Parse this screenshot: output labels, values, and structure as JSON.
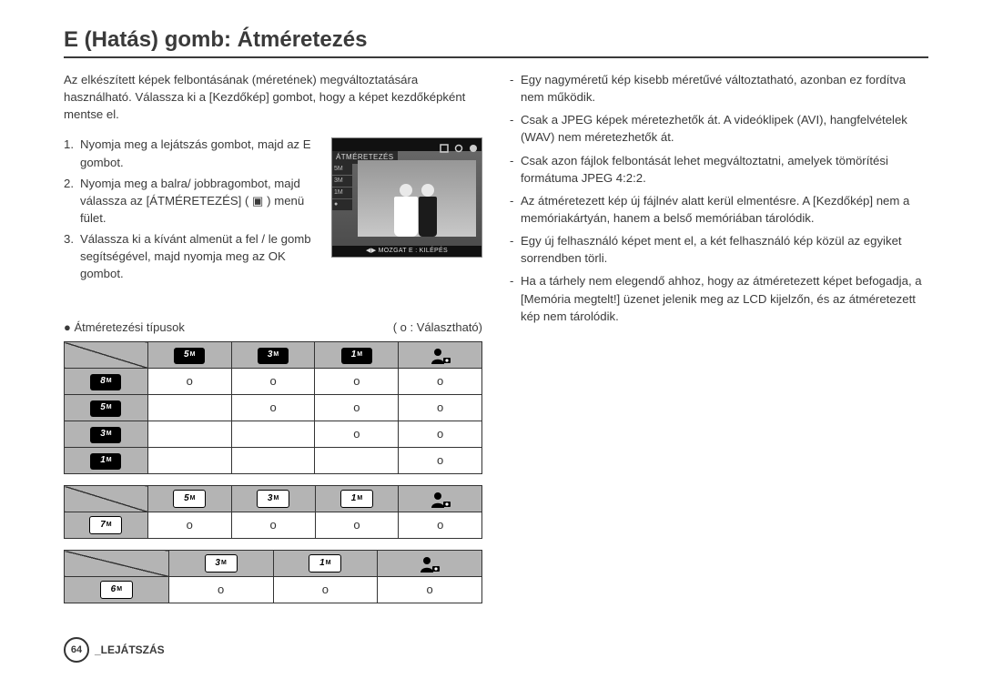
{
  "title": "E (Hatás) gomb: Átméretezés",
  "intro": "Az elkészített képek felbontásának (méretének) megváltoztatására használható. Válassza ki a [Kezdőkép] gombot, hogy a képet kezdőképként mentse el.",
  "steps": [
    "Nyomja meg a lejátszás gombot, majd az E gombot.",
    "Nyomja meg a balra/ jobbragombot, majd válassza az [ÁTMÉRETEZÉS] ( ▣ ) menü fület.",
    "Válassza ki a kívánt almenüt a  fel / le gomb segítségével, majd nyomja meg az OK gombot."
  ],
  "thumb": {
    "top_label": "ÁTMÉRETEZÉS",
    "side": [
      "5M",
      "3M",
      "1M",
      "●"
    ],
    "bottom": "◀▶ MOZGAT    E : KILÉPÉS"
  },
  "right_bullets": [
    {
      "text": "Egy nagyméretű kép kisebb méretűvé változtatható, azonban ez fordítva nem működik.",
      "sub": false
    },
    {
      "text": "Csak a JPEG képek méretezhetők át. A videóklipek (AVI), hangfelvételek (WAV) nem méretezhetők át.",
      "sub": false
    },
    {
      "text": "Csak azon fájlok felbontását lehet megváltoztatni, amelyek tömörítési formátuma JPEG 4:2:2.",
      "sub": false
    },
    {
      "text": "Az átméretezett kép új fájlnév alatt kerül elmentésre. A [Kezdőkép] nem a memóriakártyán, hanem a belső memóriában tárolódik.",
      "sub": false
    },
    {
      "text": "Egy új felhasználó képet ment el, a két felhasználó kép közül az egyiket sorrendben törli.",
      "sub": false
    },
    {
      "text": "Ha a tárhely nem elegendő ahhoz, hogy az átméretezett képet befogadja, a [Memória megtelt!] üzenet jelenik meg az LCD kijelzőn, és az átméretezett kép nem tárolódik.",
      "sub": false
    }
  ],
  "tables_note": "● Átméretezési típusok",
  "tables_legend": "( o : Választható)",
  "table1": {
    "col_headers": [
      "5M",
      "3M",
      "1M",
      "PERSON"
    ],
    "rows": [
      {
        "header": "8M",
        "cells": [
          "o",
          "o",
          "o",
          "o"
        ]
      },
      {
        "header": "5M",
        "cells": [
          "",
          "o",
          "o",
          "o"
        ]
      },
      {
        "header": "3M",
        "cells": [
          "",
          "",
          "o",
          "o"
        ]
      },
      {
        "header": "1M",
        "cells": [
          "",
          "",
          "",
          "o"
        ]
      }
    ],
    "badge_style": "black"
  },
  "table2": {
    "col_headers": [
      "5M",
      "3M",
      "1M",
      "PERSON"
    ],
    "rows": [
      {
        "header": "7M",
        "cells": [
          "o",
          "o",
          "o",
          "o"
        ]
      }
    ],
    "badge_style": "boxed"
  },
  "table3": {
    "col_headers": [
      "3M",
      "1M",
      "PERSON"
    ],
    "rows": [
      {
        "header": "6M",
        "cells": [
          "o",
          "o",
          "o"
        ]
      }
    ],
    "badge_style": "boxed"
  },
  "footer": {
    "page": "64",
    "section": "_LEJÁTSZÁS"
  },
  "colors": {
    "text": "#3a3a3a",
    "header_bg": "#b4b4b4",
    "border": "#333333",
    "badge_bg": "#000000",
    "badge_fg": "#ffffff"
  }
}
